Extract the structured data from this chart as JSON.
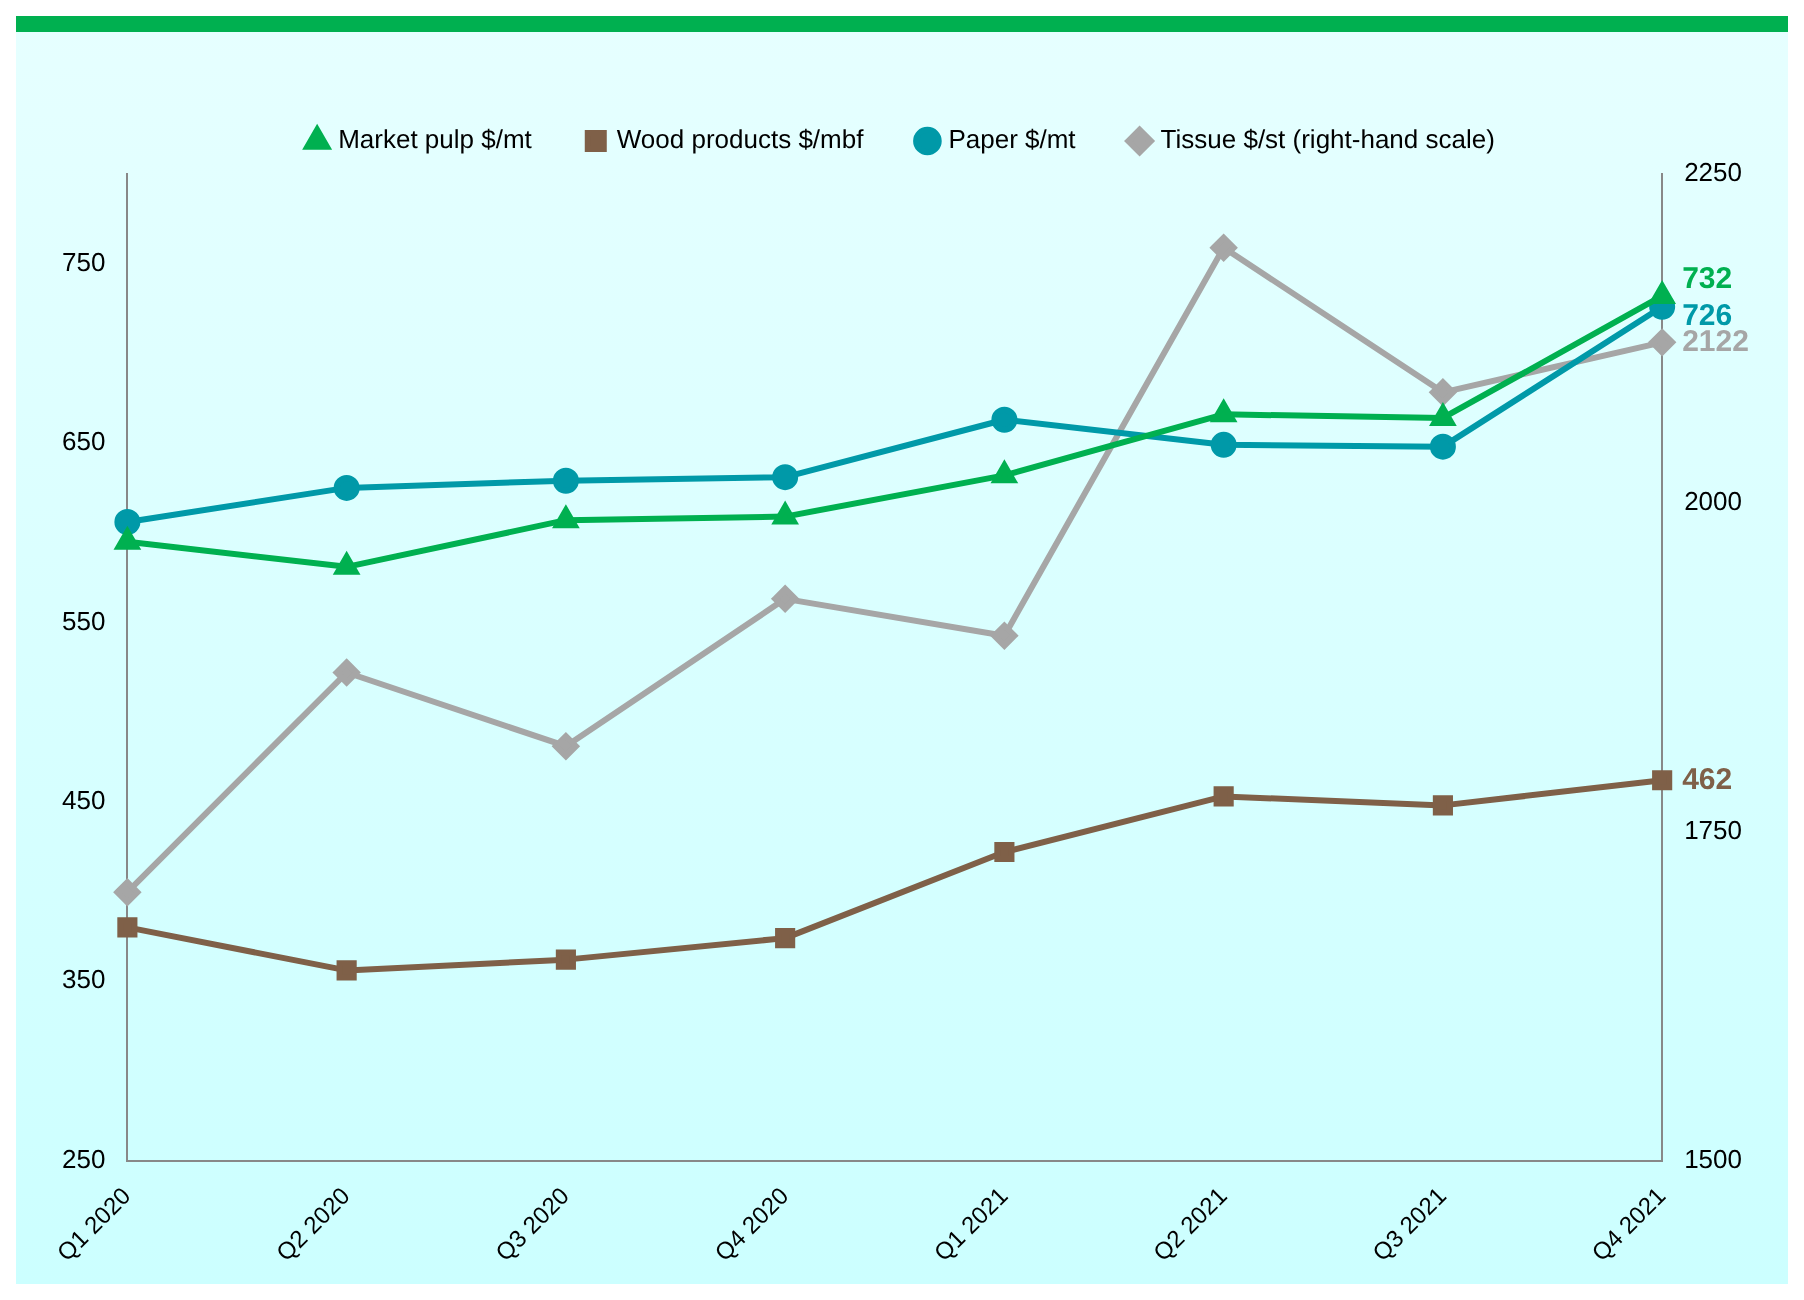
{
  "chart_data": {
    "type": "line",
    "categories": [
      "Q1 2020",
      "Q2 2020",
      "Q3 2020",
      "Q4 2020",
      "Q1 2021",
      "Q2 2021",
      "Q3 2021",
      "Q4 2021"
    ],
    "series": [
      {
        "name": "Market pulp $/mt",
        "color": "#00b050",
        "marker": "triangle",
        "values": [
          595,
          581,
          607,
          609,
          632,
          666,
          664,
          732
        ],
        "value_labels": [
          null,
          null,
          null,
          null,
          null,
          null,
          null,
          "732"
        ]
      },
      {
        "name": "Wood products $/mbf",
        "color": "#7f6048",
        "marker": "square",
        "values": [
          380,
          356,
          362,
          374,
          422,
          453,
          448,
          462
        ],
        "value_labels": [
          null,
          null,
          null,
          null,
          null,
          null,
          null,
          "462"
        ]
      },
      {
        "name": "Paper $/mt",
        "color": "#0099a8",
        "marker": "circle",
        "values": [
          606,
          625,
          629,
          631,
          663,
          649,
          648,
          726
        ],
        "value_labels": [
          null,
          null,
          null,
          null,
          null,
          null,
          null,
          "726"
        ]
      },
      {
        "name": "Tissue $/st (right-hand scale)",
        "color": "#a6a6a6",
        "marker": "diamond",
        "axis": "y2",
        "values": [
          1704,
          1871,
          1815,
          1927,
          1899,
          2194,
          2084,
          2122
        ],
        "value_labels": [
          null,
          null,
          null,
          null,
          null,
          null,
          null,
          "2122"
        ]
      }
    ],
    "ylim": [
      250,
      800
    ],
    "yticks": [
      250,
      350,
      450,
      550,
      650,
      750
    ],
    "y2lim": [
      1500,
      2250
    ],
    "y2ticks": [
      1500,
      1750,
      2000,
      2250
    ],
    "grid": false,
    "legend": "top"
  }
}
